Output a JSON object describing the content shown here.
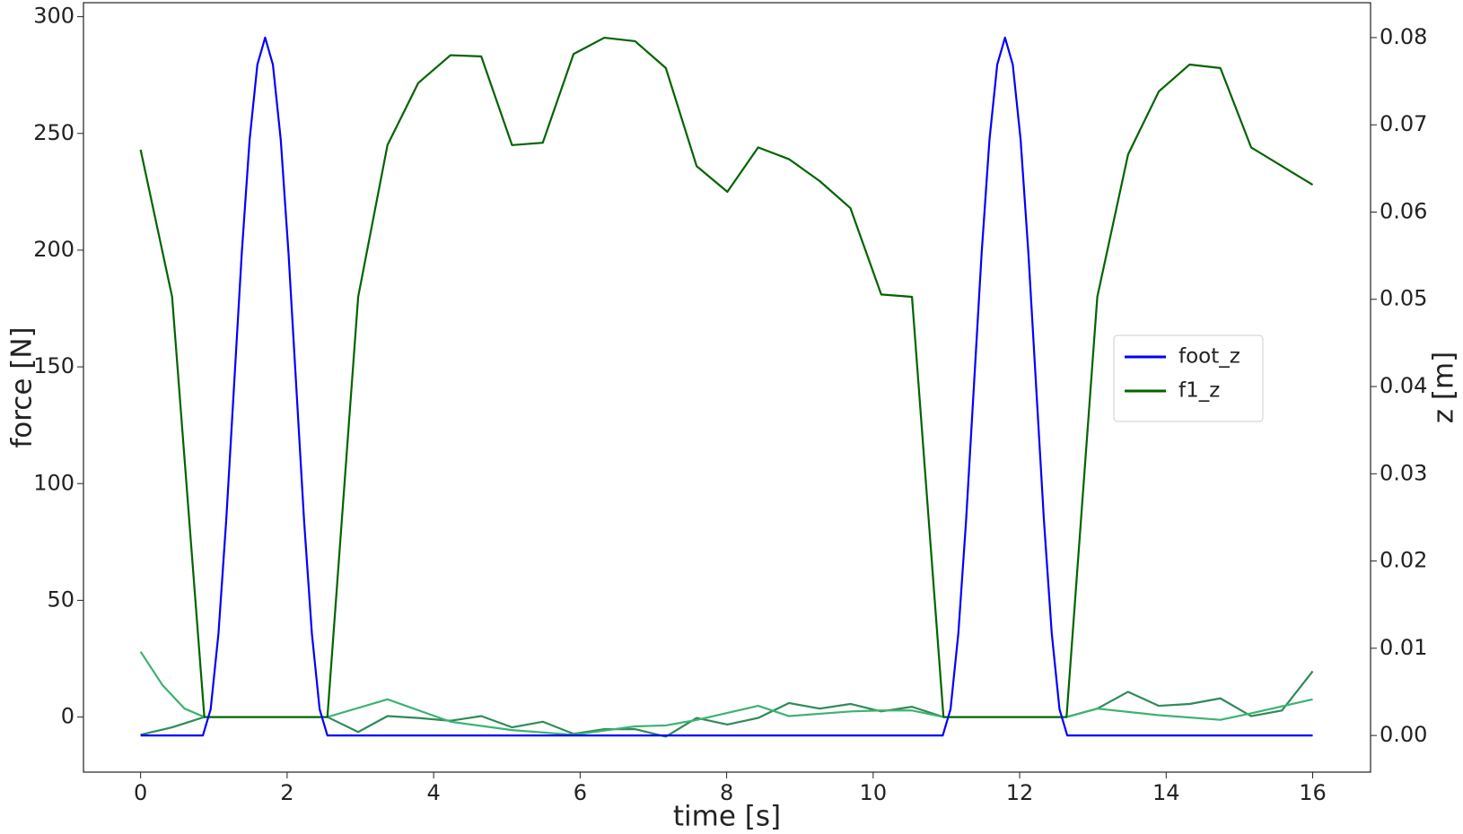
{
  "chart_data": {
    "type": "line",
    "xlabel": "time [s]",
    "ylabel": "force [N]",
    "y2label": "z [m]",
    "xlim": [
      -0.78,
      16.79
    ],
    "xticks": [
      0,
      2,
      4,
      6,
      8,
      10,
      12,
      14,
      16
    ],
    "ylim": [
      -23.6,
      306
    ],
    "yticks": [
      0,
      50,
      100,
      150,
      200,
      250,
      300
    ],
    "y2lim": [
      -0.0042,
      0.084
    ],
    "y2ticks": [
      {
        "value": 0,
        "label": "0.00"
      },
      {
        "value": 0.01,
        "label": "0.01"
      },
      {
        "value": 0.02,
        "label": "0.02"
      },
      {
        "value": 0.03,
        "label": "0.03"
      },
      {
        "value": 0.04,
        "label": "0.04"
      },
      {
        "value": 0.05,
        "label": "0.05"
      },
      {
        "value": 0.06,
        "label": "0.06"
      },
      {
        "value": 0.07,
        "label": "0.07"
      },
      {
        "value": 0.08,
        "label": "0.08"
      }
    ],
    "legend": "center right",
    "series": [
      {
        "name": "foot_z",
        "color": "#0000ff",
        "axis": "y2",
        "x": [
          0,
          0.85,
          0.956,
          1.063,
          1.169,
          1.275,
          1.381,
          1.488,
          1.594,
          1.7,
          1.806,
          1.913,
          2.019,
          2.125,
          2.231,
          2.338,
          2.444,
          2.55,
          10.95,
          11.056,
          11.163,
          11.269,
          11.375,
          11.481,
          11.588,
          11.694,
          11.8,
          11.906,
          12.013,
          12.119,
          12.225,
          12.331,
          12.438,
          12.544,
          12.65,
          16
        ],
        "values": [
          0,
          0,
          0.003,
          0.0117,
          0.0247,
          0.04,
          0.0553,
          0.0683,
          0.0769,
          0.08,
          0.0769,
          0.0683,
          0.0553,
          0.04,
          0.0247,
          0.0117,
          0.003,
          0,
          0,
          0.003,
          0.0117,
          0.0247,
          0.04,
          0.0553,
          0.0683,
          0.0769,
          0.08,
          0.0769,
          0.0683,
          0.0553,
          0.04,
          0.0247,
          0.0117,
          0.003,
          0,
          0
        ]
      },
      {
        "name": "f1_z",
        "color": "#006400",
        "x": [
          0,
          0.43,
          0.87,
          2.55,
          2.97,
          3.37,
          3.79,
          4.23,
          4.65,
          5.07,
          5.49,
          5.91,
          6.33,
          6.75,
          7.17,
          7.59,
          8.01,
          8.43,
          8.85,
          9.27,
          9.69,
          10.11,
          10.53,
          10.96,
          12.64,
          13.06,
          13.48,
          13.9,
          14.32,
          14.74,
          15.16,
          16
        ],
        "values": [
          243,
          180,
          0,
          0,
          180,
          245,
          271.6,
          283.5,
          283,
          245,
          246,
          284,
          291,
          289.5,
          278,
          236,
          225,
          244,
          239,
          229.6,
          218,
          181,
          180,
          0,
          0,
          180,
          241,
          268,
          279.5,
          278,
          244,
          228
        ]
      },
      {
        "color": "#3cb371",
        "x": [
          0,
          0.3,
          0.6,
          0.87,
          2.55,
          3.37,
          4.23,
          5.07,
          5.9,
          6.75,
          7.17,
          7.6,
          8.43,
          8.85,
          9.7,
          10.1,
          10.53,
          10.96,
          12.64,
          13.06,
          13.9,
          14.74,
          15.16,
          16
        ],
        "values": [
          28,
          13.6,
          3.6,
          0,
          0,
          7.6,
          -2,
          -5.6,
          -7.6,
          -4,
          -3.6,
          -1.2,
          4.8,
          0.4,
          2.4,
          2.8,
          2.8,
          0,
          0,
          3.6,
          0.8,
          -1.2,
          1.6,
          7.6
        ]
      },
      {
        "color": "#2e8b57",
        "x": [
          0,
          0.43,
          0.87,
          2.55,
          2.97,
          3.37,
          3.79,
          4.23,
          4.65,
          5.07,
          5.49,
          5.91,
          6.33,
          6.75,
          7.17,
          7.59,
          8.01,
          8.43,
          8.85,
          9.27,
          9.69,
          10.11,
          10.53,
          10.96,
          12.64,
          13.06,
          13.48,
          13.9,
          14.32,
          14.74,
          15.16,
          15.58,
          16
        ],
        "values": [
          -7.6,
          -4.4,
          0,
          0,
          -6.4,
          0.4,
          -0.4,
          -1.6,
          0.4,
          -4.4,
          -2,
          -7.2,
          -5.2,
          -5.2,
          -8.4,
          -0.4,
          -3.2,
          -0.4,
          6,
          3.6,
          5.6,
          2.4,
          4.4,
          0,
          0,
          3.6,
          10.8,
          4.8,
          5.6,
          8,
          0.4,
          2.8,
          19.6
        ]
      }
    ]
  }
}
